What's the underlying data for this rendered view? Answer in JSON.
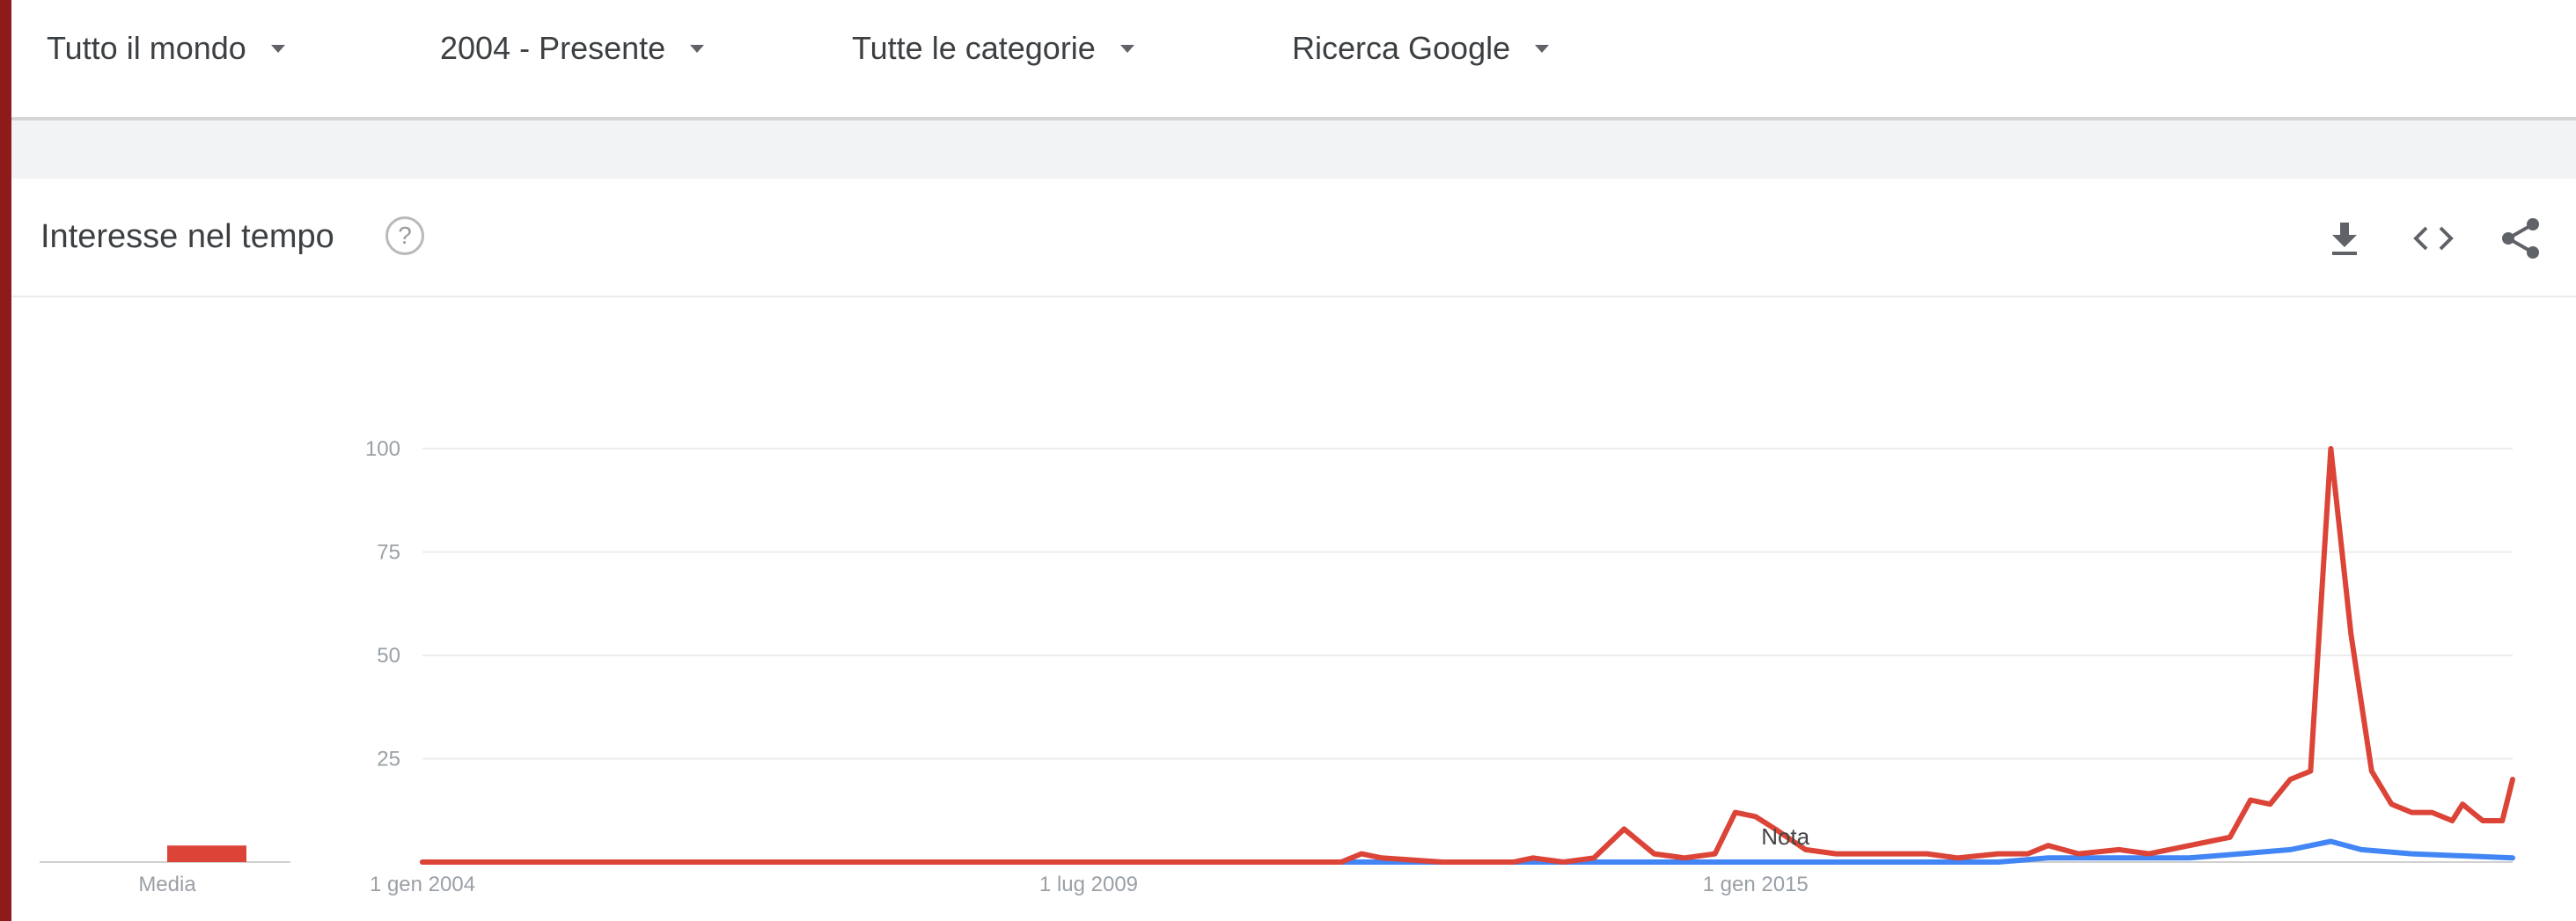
{
  "filters": {
    "region": "Tutto il mondo",
    "period": "2004 - Presente",
    "category": "Tutte le categorie",
    "source": "Ricerca Google"
  },
  "card": {
    "title": "Interesse nel tempo",
    "help_glyph": "?",
    "icons": {
      "download": "download-icon",
      "embed": "embed-code-icon",
      "share": "share-icon"
    }
  },
  "chart_data": {
    "type": "line",
    "title": "",
    "xlabel": "",
    "ylabel": "",
    "ylim": [
      0,
      100
    ],
    "xlim": [
      "2004-01-01",
      "2021-04-01"
    ],
    "yticks": [
      "25",
      "50",
      "75",
      "100"
    ],
    "xticks": [
      {
        "date": "2004-01-01",
        "label": "1 gen 2004"
      },
      {
        "date": "2009-07-01",
        "label": "1 lug 2009"
      },
      {
        "date": "2015-01-01",
        "label": "1 gen 2015"
      }
    ],
    "grid": true,
    "average_label": "Media",
    "averages": [
      {
        "series": 0,
        "value": 4
      },
      {
        "series": 1,
        "value": 0
      }
    ],
    "annotations": [
      {
        "date": "2015-04-01",
        "text": "Nota"
      }
    ],
    "colors": [
      "#db4437",
      "#4285f4"
    ],
    "series": [
      {
        "color": "#db4437",
        "points": [
          [
            "2004-01-01",
            0
          ],
          [
            "2008-12-01",
            0
          ],
          [
            "2011-08-01",
            0
          ],
          [
            "2011-10-01",
            2
          ],
          [
            "2011-12-01",
            1
          ],
          [
            "2012-06-01",
            0
          ],
          [
            "2013-01-01",
            0
          ],
          [
            "2013-03-01",
            1
          ],
          [
            "2013-06-01",
            0
          ],
          [
            "2013-09-01",
            1
          ],
          [
            "2013-12-01",
            8
          ],
          [
            "2014-03-01",
            2
          ],
          [
            "2014-06-01",
            1
          ],
          [
            "2014-09-01",
            2
          ],
          [
            "2014-11-01",
            12
          ],
          [
            "2015-01-01",
            11
          ],
          [
            "2015-03-01",
            8
          ],
          [
            "2015-06-01",
            3
          ],
          [
            "2015-09-01",
            2
          ],
          [
            "2016-01-01",
            2
          ],
          [
            "2016-06-01",
            2
          ],
          [
            "2016-09-01",
            1
          ],
          [
            "2017-01-01",
            2
          ],
          [
            "2017-04-01",
            2
          ],
          [
            "2017-06-01",
            4
          ],
          [
            "2017-09-01",
            2
          ],
          [
            "2018-01-01",
            3
          ],
          [
            "2018-04-01",
            2
          ],
          [
            "2018-08-01",
            4
          ],
          [
            "2018-12-01",
            6
          ],
          [
            "2019-02-01",
            15
          ],
          [
            "2019-04-01",
            14
          ],
          [
            "2019-06-01",
            20
          ],
          [
            "2019-08-01",
            22
          ],
          [
            "2019-10-01",
            100
          ],
          [
            "2019-12-01",
            55
          ],
          [
            "2020-02-01",
            22
          ],
          [
            "2020-04-01",
            14
          ],
          [
            "2020-06-01",
            12
          ],
          [
            "2020-08-01",
            12
          ],
          [
            "2020-10-01",
            10
          ],
          [
            "2020-11-01",
            14
          ],
          [
            "2020-12-01",
            12
          ],
          [
            "2021-01-01",
            10
          ],
          [
            "2021-02-01",
            10
          ],
          [
            "2021-03-01",
            10
          ],
          [
            "2021-04-01",
            20
          ]
        ]
      },
      {
        "color": "#4285f4",
        "points": [
          [
            "2004-01-01",
            0
          ],
          [
            "2013-08-01",
            0
          ],
          [
            "2014-02-01",
            0
          ],
          [
            "2015-02-01",
            0
          ],
          [
            "2016-01-01",
            0
          ],
          [
            "2017-01-01",
            0
          ],
          [
            "2017-06-01",
            1
          ],
          [
            "2018-01-01",
            1
          ],
          [
            "2018-08-01",
            1
          ],
          [
            "2019-01-01",
            2
          ],
          [
            "2019-06-01",
            3
          ],
          [
            "2019-10-01",
            5
          ],
          [
            "2020-01-01",
            3
          ],
          [
            "2020-06-01",
            2
          ],
          [
            "2021-04-01",
            1
          ]
        ]
      }
    ]
  }
}
